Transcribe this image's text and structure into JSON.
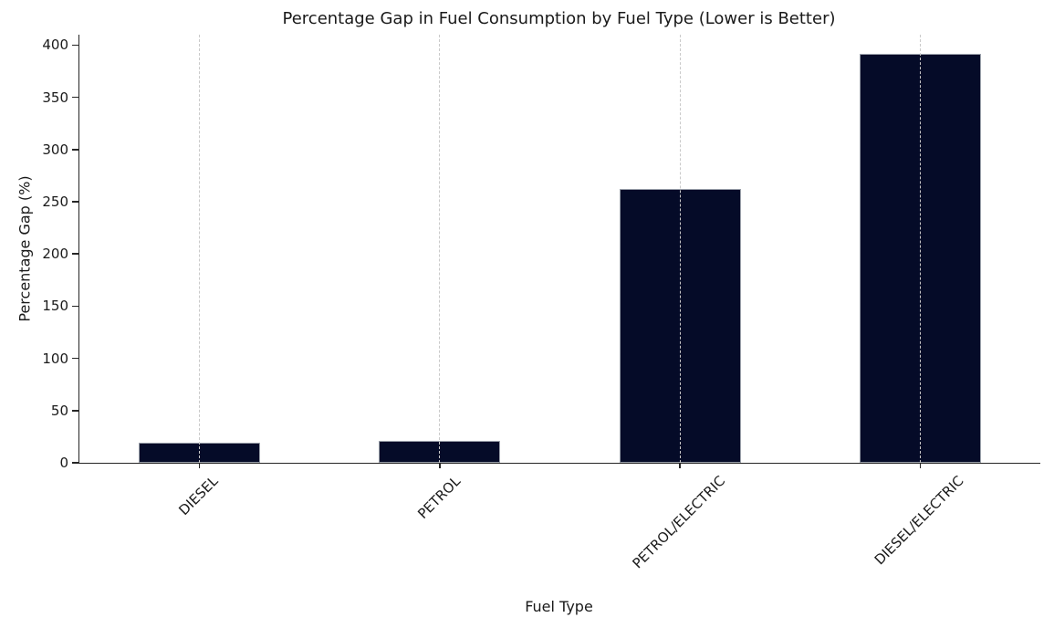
{
  "chart_data": {
    "type": "bar",
    "title": "Percentage Gap in Fuel Consumption by Fuel Type (Lower is Better)",
    "xlabel": "Fuel Type",
    "ylabel": "Percentage Gap (%)",
    "categories": [
      "DIESEL",
      "PETROL",
      "PETROL/ELECTRIC",
      "DIESEL/ELECTRIC"
    ],
    "values": [
      19,
      21,
      262,
      392
    ],
    "ylim": [
      0,
      410
    ],
    "yticks": [
      0,
      50,
      100,
      150,
      200,
      250,
      300,
      350,
      400
    ],
    "x_tick_rotation_deg": 45,
    "grid": {
      "vertical": true,
      "style": "dashed",
      "color": "#c9c9c9"
    },
    "legend": "none",
    "colors": {
      "bar_fill": "#050b28",
      "bar_edge": "#9aa0aa",
      "axis": "#262626",
      "text": "#1a1a1a",
      "background": "#ffffff"
    }
  }
}
